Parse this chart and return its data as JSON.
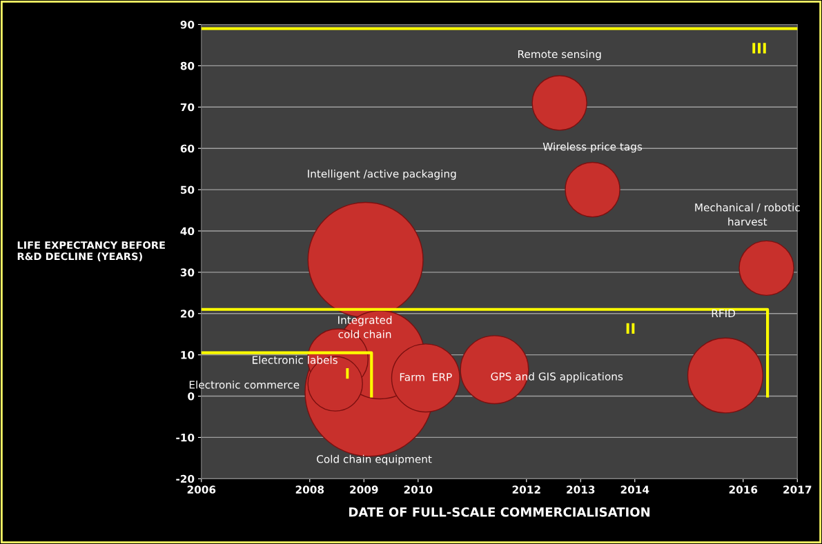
{
  "chart_data": {
    "type": "bubble",
    "xlabel": "DATE OF FULL-SCALE COMMERCIALISATION",
    "ylabel": "LIFE EXPECTANCY BEFORE\nR&D DECLINE (YEARS)",
    "series": [
      {
        "name": "Cold chain equipment",
        "color": "#c8302c",
        "x": [
          2009.1
        ],
        "values": [
          1
        ],
        "sizes": [
          1
        ]
      },
      {
        "name": "Intelligent /active packaging",
        "color": "#c8302c",
        "x": [
          2009.03
        ],
        "values": [
          33
        ],
        "sizes": [
          0.8
        ]
      },
      {
        "name": "Integrated\ncold chain",
        "color": "#c8302c",
        "x": [
          2009.3
        ],
        "values": [
          10
        ],
        "sizes": [
          0.47
        ]
      },
      {
        "name": "Farm  ERP",
        "color": "#c8302c",
        "x": [
          2010.14
        ],
        "values": [
          4.4
        ],
        "sizes": [
          0.28
        ]
      },
      {
        "name": "GPS and GIS applications",
        "color": "#c8302c",
        "x": [
          2011.41
        ],
        "values": [
          6.4
        ],
        "sizes": [
          0.28
        ]
      },
      {
        "name": "RFID",
        "color": "#c8302c",
        "x": [
          2015.67
        ],
        "values": [
          5
        ],
        "sizes": [
          0.34
        ]
      },
      {
        "name": "Electronic labels",
        "color": "#c8302c",
        "x": [
          2008.52
        ],
        "values": [
          9
        ],
        "sizes": [
          0.22
        ]
      },
      {
        "name": "Electronic commerce",
        "color": "#c8302c",
        "x": [
          2008.47
        ],
        "values": [
          3
        ],
        "sizes": [
          0.18
        ]
      },
      {
        "name": "Mechanical / robotic\nharvest",
        "color": "#c8302c",
        "x": [
          2016.43
        ],
        "values": [
          31
        ],
        "sizes": [
          0.18
        ]
      },
      {
        "name": "Wireless price tags",
        "color": "#c8302c",
        "x": [
          2013.22
        ],
        "values": [
          50
        ],
        "sizes": [
          0.18
        ]
      },
      {
        "name": "Remote sensing",
        "color": "#c8302c",
        "x": [
          2012.61
        ],
        "values": [
          71
        ],
        "sizes": [
          0.18
        ]
      },
      {
        "type": "line",
        "color": "#ffff00",
        "x": [
          2006,
          2009.14,
          2009.14
        ],
        "values": [
          10.5,
          10.5,
          0
        ]
      },
      {
        "type": "line",
        "color": "#ffff00",
        "x": [
          2006,
          2016.45,
          2016.45
        ],
        "values": [
          21,
          21,
          0
        ]
      }
    ],
    "ref_lines": [
      {
        "axis": "y",
        "value": 89,
        "color": "#ffff00"
      }
    ],
    "annotations": [
      "I",
      "II",
      "III"
    ],
    "xlim": [
      2006,
      2017
    ],
    "xticks": [
      2006,
      2008,
      2009,
      2010,
      2012,
      2013,
      2014,
      2016,
      2017
    ],
    "ylim": [
      -20,
      90
    ],
    "yticks": [
      -20,
      -10,
      0,
      10,
      20,
      30,
      40,
      50,
      60,
      70,
      80,
      90
    ],
    "grid": "y",
    "legend": false
  }
}
